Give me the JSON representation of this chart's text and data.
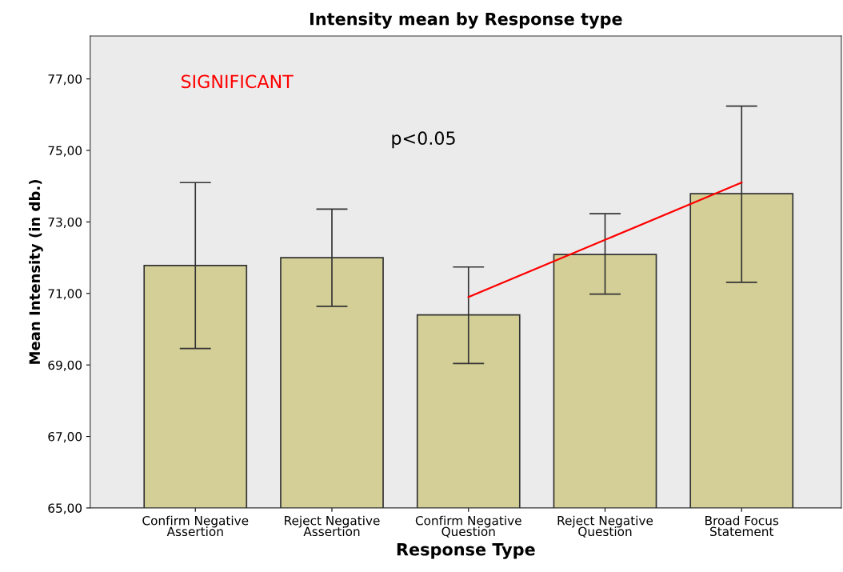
{
  "chart_data": {
    "type": "bar",
    "title": "Intensity mean by Response type",
    "xlabel": "Response Type",
    "ylabel": "Mean Intensity (in db.)",
    "categories": [
      "Confirm Negative\nAssertion",
      "Reject Negative\nAssertion",
      "Confirm Negative\nQuestion",
      "Reject Negative\nQuestion",
      "Broad Focus\nStatement"
    ],
    "series": [
      {
        "color": "#d4cf96",
        "values": [
          71.78,
          72.0,
          70.4,
          72.09,
          73.79
        ],
        "errors": [
          [
            69.46,
            74.1
          ],
          [
            70.64,
            73.36
          ],
          [
            69.04,
            71.74
          ],
          [
            70.98,
            73.23
          ],
          [
            71.31,
            76.24
          ]
        ]
      },
      {
        "type": "line",
        "color": "#ff0000",
        "values": [
          null,
          null,
          70.9,
          72.5,
          74.1
        ]
      }
    ],
    "ylim": [
      65,
      78.2
    ],
    "yticks": [
      {
        "value": 65,
        "label": "65,00"
      },
      {
        "value": 67,
        "label": "67,00"
      },
      {
        "value": 69,
        "label": "69,00"
      },
      {
        "value": 71,
        "label": "71,00"
      },
      {
        "value": 73,
        "label": "73,00"
      },
      {
        "value": 75,
        "label": "75,00"
      },
      {
        "value": 77,
        "label": "77,00"
      }
    ],
    "annotations": [
      "SIGNIFICANT",
      "p<0.05"
    ],
    "grid": false,
    "legend": false
  }
}
